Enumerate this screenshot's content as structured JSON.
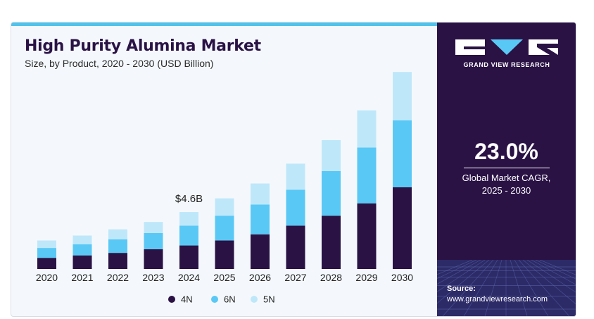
{
  "header": {
    "title": "High Purity Alumina Market",
    "subtitle": "Size, by Product, 2020 - 2030 (USD Billion)"
  },
  "chart_data": {
    "type": "bar",
    "stacked": true,
    "categories": [
      "2020",
      "2021",
      "2022",
      "2023",
      "2024",
      "2025",
      "2026",
      "2027",
      "2028",
      "2029",
      "2030"
    ],
    "series": [
      {
        "name": "4N",
        "color": "#2a1245",
        "values": [
          0.9,
          1.1,
          1.3,
          1.6,
          1.9,
          2.3,
          2.8,
          3.5,
          4.3,
          5.3,
          6.6
        ]
      },
      {
        "name": "6N",
        "color": "#5ac8f5",
        "values": [
          0.8,
          0.9,
          1.1,
          1.3,
          1.6,
          2.0,
          2.4,
          2.9,
          3.6,
          4.5,
          5.4
        ]
      },
      {
        "name": "5N",
        "color": "#bfe7fa",
        "values": [
          0.6,
          0.7,
          0.8,
          0.9,
          1.1,
          1.4,
          1.7,
          2.1,
          2.5,
          3.0,
          3.9
        ]
      }
    ],
    "annotations": [
      {
        "category": "2024",
        "text": "$4.6B"
      }
    ],
    "legend_position": "bottom-center",
    "grid": false
  },
  "sidebar": {
    "brand": "GRAND VIEW RESEARCH",
    "cagr_value": "23.0%",
    "cagr_label_line1": "Global Market CAGR,",
    "cagr_label_line2": "2025 - 2030",
    "source_label": "Source:",
    "source_url": "www.grandviewresearch.com"
  }
}
